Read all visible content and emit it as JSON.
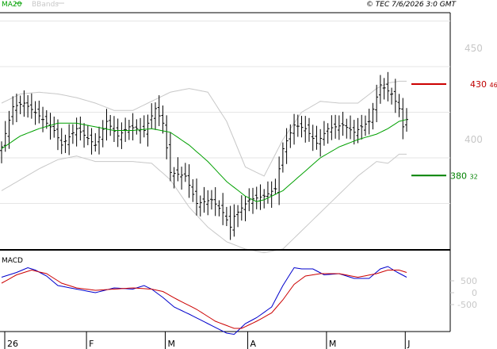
{
  "header": {
    "legend_ma": "MA20",
    "legend_bbands": "BBands",
    "watermark": "© TEC 7/6/2026 3:0 GMT"
  },
  "levels": {
    "resistance": {
      "value": 430.46,
      "int": "430",
      "dec": "46",
      "color": "#cc0000"
    },
    "support": {
      "value": 380.32,
      "int": "380",
      "dec": "32",
      "color": "#008000"
    }
  },
  "chart_data": [
    {
      "type": "ohlc",
      "title": "",
      "y_ticks": [
        "450",
        "400"
      ],
      "y_tick_values": [
        450,
        400
      ],
      "ylim": [
        345,
        470
      ],
      "x_ticks": [
        "26",
        "F",
        "M",
        "A",
        "M",
        "J"
      ],
      "x_tick_index": [
        0,
        22,
        43,
        65,
        86,
        107
      ],
      "grid": true,
      "series": [
        {
          "name": "price",
          "color": "#000000"
        },
        {
          "name": "MA20",
          "color": "#00a000"
        },
        {
          "name": "BBands",
          "color": "#c8c8c8"
        }
      ],
      "anchors": {
        "close": [
          [
            0,
            396
          ],
          [
            3,
            418
          ],
          [
            6,
            420
          ],
          [
            10,
            413
          ],
          [
            14,
            405
          ],
          [
            16,
            397
          ],
          [
            20,
            406
          ],
          [
            25,
            397
          ],
          [
            28,
            410
          ],
          [
            31,
            402
          ],
          [
            34,
            407
          ],
          [
            38,
            405
          ],
          [
            41,
            417
          ],
          [
            43,
            409
          ],
          [
            45,
            382
          ],
          [
            49,
            380
          ],
          [
            52,
            365
          ],
          [
            56,
            367
          ],
          [
            59,
            360
          ],
          [
            61,
            352
          ],
          [
            62,
            358
          ],
          [
            66,
            367
          ],
          [
            70,
            369
          ],
          [
            73,
            373
          ],
          [
            75,
            395
          ],
          [
            78,
            408
          ],
          [
            81,
            406
          ],
          [
            84,
            398
          ],
          [
            87,
            406
          ],
          [
            91,
            408
          ],
          [
            94,
            404
          ],
          [
            98,
            410
          ],
          [
            101,
            430
          ],
          [
            104,
            425
          ],
          [
            106,
            417
          ],
          [
            107,
            407
          ],
          [
            108,
            411
          ]
        ],
        "ma20": [
          [
            0,
            395
          ],
          [
            5,
            402
          ],
          [
            10,
            406
          ],
          [
            15,
            409
          ],
          [
            20,
            409
          ],
          [
            25,
            407
          ],
          [
            30,
            405
          ],
          [
            35,
            405
          ],
          [
            40,
            406
          ],
          [
            45,
            404
          ],
          [
            50,
            397
          ],
          [
            55,
            388
          ],
          [
            60,
            377
          ],
          [
            65,
            369
          ],
          [
            68,
            366
          ],
          [
            70,
            367
          ],
          [
            75,
            372
          ],
          [
            80,
            381
          ],
          [
            85,
            390
          ],
          [
            90,
            396
          ],
          [
            95,
            400
          ],
          [
            100,
            403
          ],
          [
            103,
            406
          ],
          [
            106,
            410
          ],
          [
            108,
            411
          ]
        ],
        "bb_upper": [
          [
            0,
            420
          ],
          [
            5,
            425
          ],
          [
            10,
            426
          ],
          [
            15,
            425
          ],
          [
            20,
            423
          ],
          [
            25,
            420
          ],
          [
            30,
            416
          ],
          [
            35,
            416
          ],
          [
            40,
            421
          ],
          [
            45,
            426
          ],
          [
            50,
            428
          ],
          [
            55,
            426
          ],
          [
            60,
            410
          ],
          [
            65,
            385
          ],
          [
            70,
            380
          ],
          [
            75,
            400
          ],
          [
            80,
            415
          ],
          [
            85,
            421
          ],
          [
            90,
            420
          ],
          [
            95,
            420
          ],
          [
            100,
            428
          ],
          [
            103,
            431
          ],
          [
            106,
            432
          ],
          [
            108,
            432
          ]
        ],
        "bb_lower": [
          [
            0,
            372
          ],
          [
            5,
            378
          ],
          [
            10,
            384
          ],
          [
            15,
            389
          ],
          [
            20,
            391
          ],
          [
            25,
            388
          ],
          [
            30,
            388
          ],
          [
            35,
            388
          ],
          [
            40,
            387
          ],
          [
            45,
            378
          ],
          [
            50,
            363
          ],
          [
            55,
            352
          ],
          [
            60,
            344
          ],
          [
            65,
            340
          ],
          [
            70,
            338
          ],
          [
            75,
            340
          ],
          [
            80,
            350
          ],
          [
            85,
            360
          ],
          [
            90,
            370
          ],
          [
            95,
            380
          ],
          [
            100,
            388
          ],
          [
            103,
            387
          ],
          [
            106,
            392
          ],
          [
            108,
            392
          ]
        ]
      }
    },
    {
      "type": "line",
      "title": "MACD",
      "y_ticks": [
        "500",
        "0",
        "-500"
      ],
      "y_tick_values": [
        500,
        0,
        -500
      ],
      "ylim": [
        -2000,
        1500
      ],
      "series": [
        {
          "name": "MACD",
          "color": "#0000cc"
        },
        {
          "name": "Signal",
          "color": "#cc0000"
        }
      ],
      "anchors": {
        "macd": [
          [
            0,
            650
          ],
          [
            4,
            850
          ],
          [
            7,
            1050
          ],
          [
            9,
            950
          ],
          [
            12,
            700
          ],
          [
            15,
            300
          ],
          [
            20,
            150
          ],
          [
            25,
            0
          ],
          [
            30,
            200
          ],
          [
            35,
            150
          ],
          [
            38,
            300
          ],
          [
            40,
            150
          ],
          [
            43,
            -200
          ],
          [
            46,
            -600
          ],
          [
            50,
            -900
          ],
          [
            55,
            -1300
          ],
          [
            60,
            -1700
          ],
          [
            62,
            -1750
          ],
          [
            65,
            -1300
          ],
          [
            68,
            -1050
          ],
          [
            72,
            -600
          ],
          [
            75,
            300
          ],
          [
            78,
            1050
          ],
          [
            80,
            1000
          ],
          [
            83,
            1000
          ],
          [
            86,
            750
          ],
          [
            90,
            800
          ],
          [
            94,
            600
          ],
          [
            98,
            600
          ],
          [
            101,
            1000
          ],
          [
            103,
            1100
          ],
          [
            105,
            900
          ],
          [
            108,
            650
          ]
        ],
        "signal": [
          [
            0,
            400
          ],
          [
            4,
            750
          ],
          [
            8,
            950
          ],
          [
            12,
            800
          ],
          [
            16,
            400
          ],
          [
            20,
            200
          ],
          [
            25,
            100
          ],
          [
            30,
            150
          ],
          [
            35,
            200
          ],
          [
            40,
            150
          ],
          [
            43,
            50
          ],
          [
            47,
            -300
          ],
          [
            52,
            -700
          ],
          [
            57,
            -1200
          ],
          [
            62,
            -1500
          ],
          [
            64,
            -1500
          ],
          [
            68,
            -1200
          ],
          [
            72,
            -850
          ],
          [
            75,
            -300
          ],
          [
            78,
            350
          ],
          [
            81,
            700
          ],
          [
            85,
            800
          ],
          [
            90,
            800
          ],
          [
            95,
            650
          ],
          [
            100,
            800
          ],
          [
            103,
            950
          ],
          [
            106,
            950
          ],
          [
            108,
            850
          ]
        ]
      }
    }
  ]
}
